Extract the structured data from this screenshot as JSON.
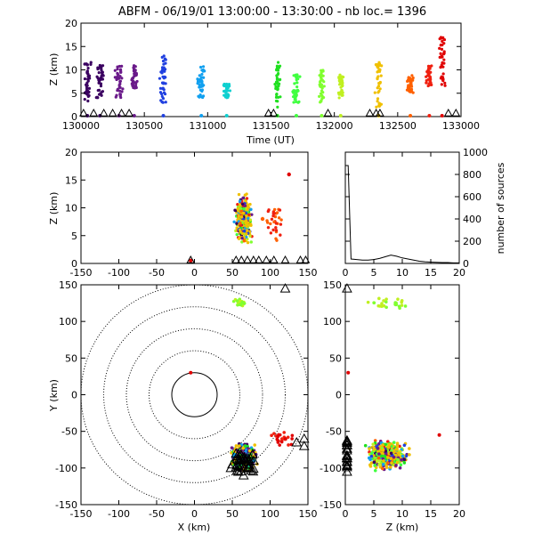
{
  "title": "ABFM - 06/19/01 13:00:00 - 13:30:00 - nb loc.=   1396",
  "chart_data": [
    {
      "type": "scatter",
      "id": "time_height",
      "xlabel": "Time (UT)",
      "ylabel": "Z (km)",
      "xlim": [
        130000,
        133000
      ],
      "ylim": [
        0,
        20
      ],
      "xticks": [
        "130000",
        "130500",
        "131000",
        "131500",
        "132000",
        "132500",
        "133000"
      ],
      "yticks": [
        "0",
        "5",
        "10",
        "15",
        "20"
      ],
      "color_by": "time",
      "clusters": [
        {
          "x": 130050,
          "z_min": 3,
          "z_max": 12,
          "color": "#3a0060"
        },
        {
          "x": 130150,
          "z_min": 4,
          "z_max": 11,
          "color": "#3a0060"
        },
        {
          "x": 130300,
          "z_min": 4,
          "z_max": 11,
          "color": "#6a1a8a"
        },
        {
          "x": 130420,
          "z_min": 6,
          "z_max": 11,
          "color": "#6a1a8a"
        },
        {
          "x": 130650,
          "z_min": 3,
          "z_max": 13,
          "color": "#2040e0"
        },
        {
          "x": 130950,
          "z_min": 4,
          "z_max": 11,
          "color": "#10a0f0"
        },
        {
          "x": 131150,
          "z_min": 4,
          "z_max": 7,
          "color": "#10d0d0"
        },
        {
          "x": 131550,
          "z_min": 2,
          "z_max": 12,
          "color": "#20e020"
        },
        {
          "x": 131700,
          "z_min": 3,
          "z_max": 9,
          "color": "#40ff40"
        },
        {
          "x": 131900,
          "z_min": 3,
          "z_max": 10,
          "color": "#80ff30"
        },
        {
          "x": 132050,
          "z_min": 4,
          "z_max": 9,
          "color": "#c0f020"
        },
        {
          "x": 132350,
          "z_min": 2,
          "z_max": 12,
          "color": "#f0c000"
        },
        {
          "x": 132600,
          "z_min": 5,
          "z_max": 9,
          "color": "#ff6000"
        },
        {
          "x": 132750,
          "z_min": 6,
          "z_max": 11,
          "color": "#f02010"
        },
        {
          "x": 132850,
          "z_min": 6,
          "z_max": 17,
          "color": "#e00000"
        }
      ]
    },
    {
      "type": "scatter",
      "id": "x_height",
      "xlabel": "",
      "ylabel": "Z (km)",
      "xlim": [
        -150,
        150
      ],
      "ylim": [
        0,
        20
      ],
      "xticks": [
        "-150",
        "-100",
        "-50",
        "0",
        "50",
        "100",
        "150"
      ],
      "yticks": [
        "0",
        "5",
        "10",
        "15",
        "20"
      ],
      "sensors_x": [
        -5,
        55,
        62,
        70,
        78,
        85,
        95,
        105,
        120,
        140,
        147
      ],
      "main_cluster": {
        "x_min": 50,
        "x_max": 80,
        "z_min": 2,
        "z_max": 14
      },
      "outliers": [
        {
          "x": 90,
          "z": 8,
          "color": "#ff6000"
        },
        {
          "x": 105,
          "z": 9,
          "color": "#f02010"
        },
        {
          "x": 125,
          "z": 16,
          "color": "#e00000"
        },
        {
          "x": -5,
          "z": 0.5,
          "color": "#e00000"
        }
      ]
    },
    {
      "type": "line",
      "id": "height_histogram",
      "xlabel": "",
      "ylabel": "number of sources",
      "xlim": [
        0,
        20
      ],
      "ylim": [
        0,
        1000
      ],
      "xticks": [
        "0",
        "5",
        "10",
        "15",
        "20"
      ],
      "yticks": [
        "0",
        "200",
        "400",
        "600",
        "800",
        "1000"
      ],
      "x": [
        0,
        0.5,
        1,
        2,
        3,
        4,
        5,
        6,
        7,
        8,
        9,
        10,
        11,
        12,
        13,
        14,
        15,
        16,
        17,
        18,
        19,
        20
      ],
      "y": [
        880,
        880,
        40,
        35,
        30,
        30,
        35,
        45,
        60,
        75,
        65,
        50,
        40,
        30,
        20,
        15,
        12,
        10,
        8,
        8,
        5,
        5
      ]
    },
    {
      "type": "scatter",
      "id": "plan_view",
      "xlabel": "X (km)",
      "ylabel": "Y (km)",
      "xlim": [
        -150,
        150
      ],
      "ylim": [
        -150,
        150
      ],
      "xticks": [
        "-150",
        "-100",
        "-50",
        "0",
        "50",
        "100",
        "150"
      ],
      "yticks": [
        "-150",
        "-100",
        "-50",
        "0",
        "50",
        "100",
        "150"
      ],
      "range_rings_km": [
        30,
        60,
        90,
        120,
        150
      ],
      "sensors": [
        [
          55,
          -80
        ],
        [
          60,
          -90
        ],
        [
          65,
          -100
        ],
        [
          58,
          -105
        ],
        [
          70,
          -95
        ],
        [
          50,
          -95
        ],
        [
          48,
          -100
        ],
        [
          65,
          -110
        ],
        [
          145,
          -70
        ],
        [
          135,
          -65
        ],
        [
          145,
          -60
        ],
        [
          120,
          145
        ]
      ],
      "clusters": [
        {
          "cx": 65,
          "cy": -85,
          "r": 20,
          "colors": [
            "#f0c000",
            "#20e020",
            "#10a0f0",
            "#6a1a8a",
            "#3a0060"
          ]
        },
        {
          "cx": 60,
          "cy": 125,
          "r": 10,
          "colors": [
            "#80ff30",
            "#c0f020"
          ]
        },
        {
          "cx": 115,
          "cy": -60,
          "r": 20,
          "colors": [
            "#f02010",
            "#e00000"
          ]
        }
      ],
      "single": [
        {
          "x": -5,
          "y": 30,
          "color": "#e00000"
        }
      ]
    },
    {
      "type": "scatter",
      "id": "z_y_view",
      "xlabel": "Z (km)",
      "ylabel": "",
      "xlim": [
        0,
        20
      ],
      "ylim": [
        -150,
        150
      ],
      "xticks": [
        "0",
        "5",
        "10",
        "15",
        "20"
      ],
      "yticks": [
        "-150",
        "-100",
        "-50",
        "0",
        "50",
        "100",
        "150"
      ],
      "main_cluster": {
        "z_min": 2,
        "z_max": 14,
        "y_min": -110,
        "y_max": -55
      },
      "top_cluster": {
        "z_min": 4,
        "z_max": 11,
        "y_min": 118,
        "y_max": 132
      }
    }
  ]
}
